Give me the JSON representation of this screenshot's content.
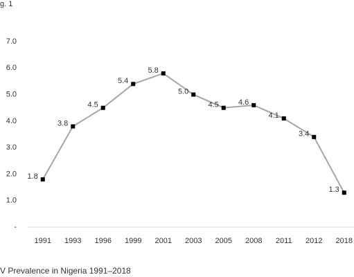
{
  "chart_data": {
    "type": "line",
    "top_text": "g. 1",
    "caption": "V Prevalence in Nigeria 1991–2018",
    "categories": [
      "1991",
      "1993",
      "1996",
      "1999",
      "2001",
      "2003",
      "2005",
      "2008",
      "2011",
      "2012",
      "2018"
    ],
    "values": [
      1.8,
      3.8,
      4.5,
      5.4,
      5.8,
      5.0,
      4.5,
      4.6,
      4.1,
      3.4,
      1.3
    ],
    "value_labels": [
      "1.8",
      "3.8",
      "4.5",
      "5.4",
      "5.8",
      "5.0",
      "4.5",
      "4.6",
      "4.1",
      "3.4",
      "1.3"
    ],
    "color": "#a6a6a6",
    "marker_color": "#000000",
    "ylim": [
      0,
      7
    ],
    "yticks": [
      {
        "value": 0,
        "label": "-"
      },
      {
        "value": 1,
        "label": "1.0"
      },
      {
        "value": 2,
        "label": "2.0"
      },
      {
        "value": 3,
        "label": "3.0"
      },
      {
        "value": 4,
        "label": "4.0"
      },
      {
        "value": 5,
        "label": "5.0"
      },
      {
        "value": 6,
        "label": "6.0"
      },
      {
        "value": 7,
        "label": "7.0"
      }
    ],
    "grid": false
  }
}
